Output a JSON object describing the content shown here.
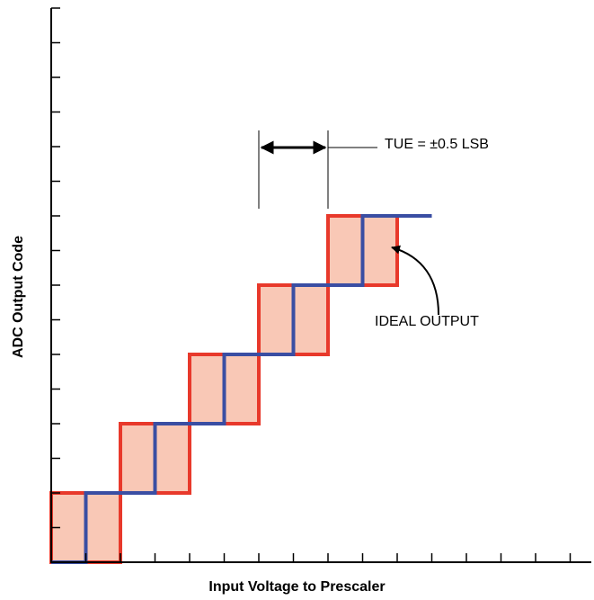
{
  "chart_data": {
    "type": "line",
    "x_label": "Input Voltage to Prescaler",
    "y_label": "ADC Output Code",
    "x_range": [
      0,
      15
    ],
    "y_range": [
      0,
      15
    ],
    "x_tick_count": 15,
    "y_tick_count": 15,
    "grid": false,
    "boxes": [
      {
        "x": [
          0,
          2
        ],
        "y": [
          0,
          2
        ]
      },
      {
        "x": [
          2,
          4
        ],
        "y": [
          2,
          4
        ]
      },
      {
        "x": [
          4,
          6
        ],
        "y": [
          4,
          6
        ]
      },
      {
        "x": [
          6,
          8
        ],
        "y": [
          6,
          8
        ]
      },
      {
        "x": [
          8,
          10
        ],
        "y": [
          8,
          10
        ]
      }
    ],
    "ideal_output": [
      [
        0,
        0
      ],
      [
        1,
        0
      ],
      [
        1,
        2
      ],
      [
        3,
        2
      ],
      [
        3,
        4
      ],
      [
        5,
        4
      ],
      [
        5,
        6
      ],
      [
        7,
        6
      ],
      [
        7,
        8
      ],
      [
        9,
        8
      ],
      [
        9,
        10
      ],
      [
        11,
        10
      ]
    ],
    "annotations": {
      "tue": {
        "text": "TUE = ±0.5 LSB",
        "span": [
          6,
          8
        ]
      },
      "ideal": {
        "text": "IDEAL OUTPUT"
      }
    },
    "colors": {
      "box_stroke": "#e8392b",
      "box_fill": "#f9c8b6",
      "ideal_line": "#3a4ea3",
      "axis": "#000000"
    }
  }
}
